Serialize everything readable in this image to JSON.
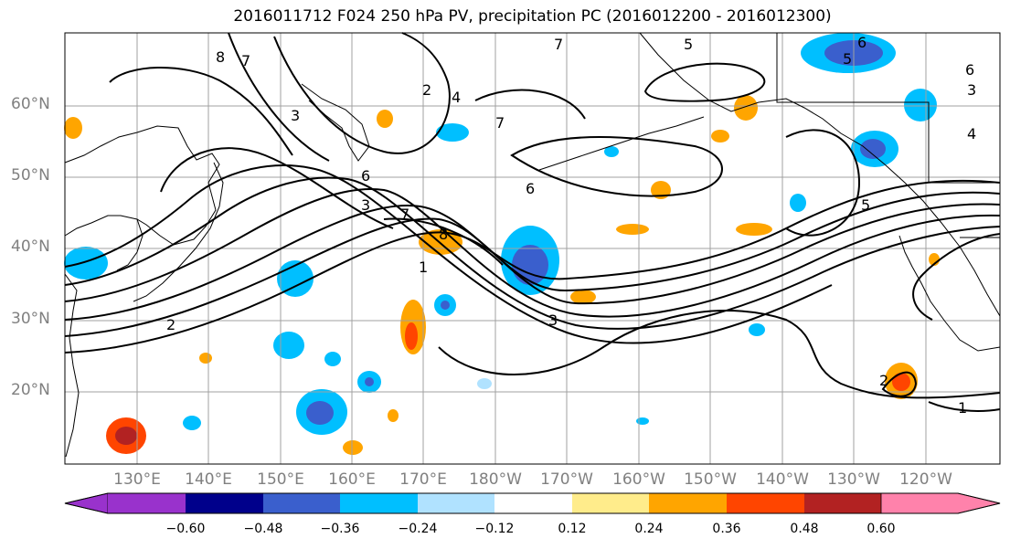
{
  "title": "2016011712 F024 250 hPa PV, precipitation PC (2016012200 - 2016012300)",
  "latitude_labels": [
    "60°N",
    "50°N",
    "40°N",
    "30°N",
    "20°N"
  ],
  "longitude_labels": [
    "130°E",
    "140°E",
    "150°E",
    "160°E",
    "170°E",
    "180°W",
    "170°W",
    "160°W",
    "150°W",
    "140°W",
    "130°W",
    "120°W"
  ],
  "colorbar": {
    "tick_labels": [
      "−0.60",
      "−0.48",
      "−0.36",
      "−0.24",
      "−0.12",
      "0.12",
      "0.24",
      "0.36",
      "0.48",
      "0.60"
    ],
    "colors": [
      "#9932cc",
      "#00008b",
      "#3a5fcd",
      "#00bfff",
      "#b0e2ff",
      "#ffffff",
      "#ffec8b",
      "#ffa500",
      "#ff4500",
      "#b22222",
      "#ff82ab"
    ]
  },
  "pv_contour_labels": [
    "1",
    "2",
    "3",
    "4",
    "5",
    "6",
    "7",
    "8"
  ],
  "colors": {
    "coastline": "#000000",
    "gridline": "#a0a0a0",
    "contour": "#000000",
    "axis_label": "#808080"
  }
}
